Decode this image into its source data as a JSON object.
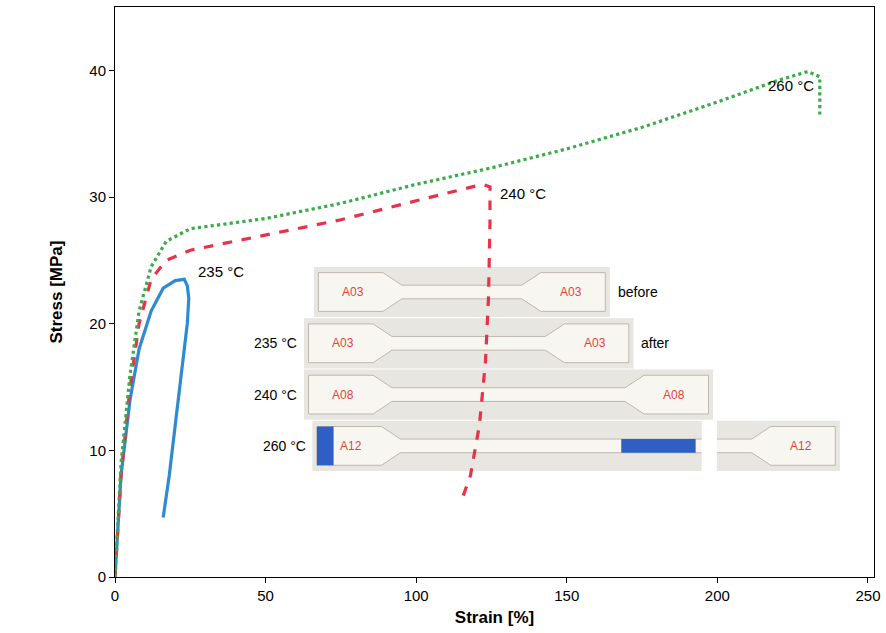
{
  "chart_data": {
    "type": "line",
    "x_label": "Strain [%]",
    "y_label": "Stress [MPa]",
    "xlim": [
      0,
      252
    ],
    "ylim": [
      0,
      45
    ],
    "xticks": [
      0,
      50,
      100,
      150,
      200,
      250
    ],
    "yticks": [
      0,
      10,
      20,
      30,
      40
    ],
    "grid": false,
    "series": [
      {
        "name": "235 °C",
        "color": "#2e8ad2",
        "line_style": "solid",
        "x": [
          0,
          2,
          5,
          8,
          12,
          16,
          20,
          23,
          24,
          24.5,
          24,
          22,
          20,
          18,
          16
        ],
        "values": [
          0,
          8,
          14,
          18,
          21,
          22.8,
          23.4,
          23.5,
          23,
          22,
          20,
          16,
          12,
          8,
          4.7
        ]
      },
      {
        "name": "240 °C",
        "color": "#e8324a",
        "line_style": "dash",
        "x": [
          0,
          2,
          5,
          8,
          12,
          17,
          25,
          50,
          75,
          100,
          115,
          122,
          124.5,
          124.5,
          124,
          123,
          121,
          118,
          115
        ],
        "values": [
          0,
          8,
          15,
          20,
          23.5,
          25,
          25.8,
          27,
          28.2,
          29.7,
          30.6,
          31,
          30.8,
          28,
          22,
          17,
          12,
          8,
          6
        ]
      },
      {
        "name": "260 °C",
        "color": "#3cab4a",
        "line_style": "dot",
        "x": [
          0,
          2,
          5,
          8,
          12,
          17,
          25,
          50,
          75,
          100,
          125,
          150,
          175,
          200,
          220,
          230,
          234,
          234
        ],
        "values": [
          0,
          9,
          16,
          21,
          24.5,
          26.5,
          27.5,
          28.3,
          29.5,
          31,
          32.3,
          33.8,
          35.5,
          37.5,
          39.2,
          39.9,
          39.5,
          36.5
        ]
      }
    ],
    "inset": [
      {
        "tag": "A03",
        "note": "before"
      },
      {
        "label": "235 °C",
        "tag": "A03",
        "note": "after"
      },
      {
        "label": "240 °C",
        "tag": "A08"
      },
      {
        "label": "260 °C",
        "tag": "A12"
      }
    ]
  }
}
